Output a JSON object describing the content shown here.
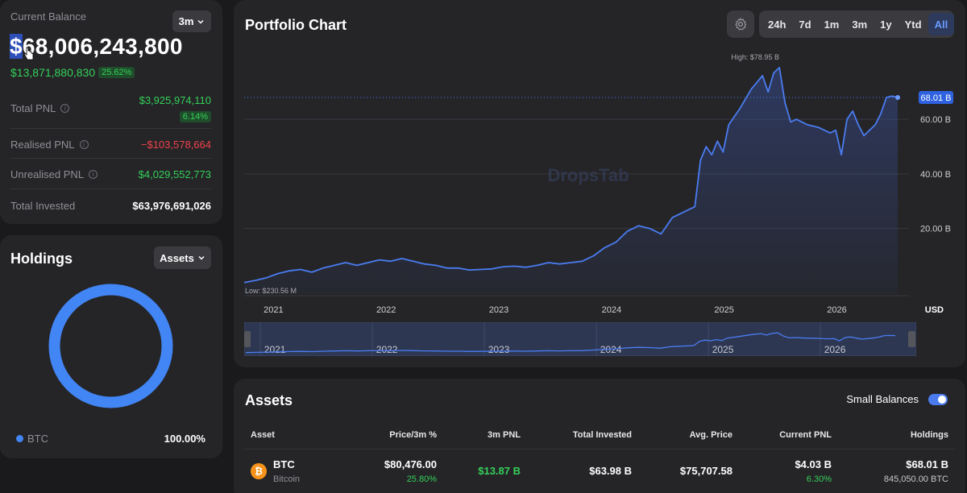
{
  "balance": {
    "label": "Current Balance",
    "period": "3m",
    "value_prefix": "$",
    "value_rest": "68,006,243,800",
    "change_value": "$13,871,880,830",
    "change_pct": "25.62%",
    "stats": [
      {
        "label": "Total PNL",
        "value": "$3,925,974,110",
        "badge": "6.14%",
        "tone": "green",
        "info": true
      },
      {
        "label": "Realised PNL",
        "value": "−$103,578,664",
        "tone": "red",
        "info": true
      },
      {
        "label": "Unrealised PNL",
        "value": "$4,029,552,773",
        "tone": "green",
        "info": true
      },
      {
        "label": "Total Invested",
        "value": "$63,976,691,026",
        "tone": "white",
        "info": false
      }
    ]
  },
  "holdings": {
    "title": "Holdings",
    "view_button": "Assets",
    "legend": [
      {
        "label": "BTC",
        "pct": "100.00%",
        "color": "#4285f4",
        "share": 1.0
      }
    ]
  },
  "chart": {
    "title": "Portfolio Chart",
    "ranges": [
      "24h",
      "7d",
      "1m",
      "3m",
      "1y",
      "Ytd",
      "All"
    ],
    "active_range": "All",
    "watermark": "DropsTab",
    "high_label": "High: $78.95 B",
    "low_label": "Low: $230.56 M",
    "current_label": "68.01 B",
    "currency": "USD"
  },
  "chart_data": {
    "type": "area",
    "x_unit": "year",
    "x_ticks": [
      "2021",
      "2022",
      "2023",
      "2024",
      "2025",
      "2026"
    ],
    "xlim": [
      2020.8,
      2026.7
    ],
    "y_ticks": [
      {
        "value": 20,
        "label": "20.00 B"
      },
      {
        "value": 40,
        "label": "40.00 B"
      },
      {
        "value": 60,
        "label": "60.00 B"
      }
    ],
    "ylim": [
      -4,
      86
    ],
    "color": "#4a7cf0",
    "series": [
      {
        "x": [
          2020.8,
          2020.9,
          2021.0,
          2021.1,
          2021.2,
          2021.3,
          2021.4,
          2021.5,
          2021.6,
          2021.7,
          2021.8,
          2021.9,
          2022.0,
          2022.1,
          2022.2,
          2022.3,
          2022.4,
          2022.5,
          2022.6,
          2022.7,
          2022.8,
          2022.9,
          2023.0,
          2023.1,
          2023.2,
          2023.3,
          2023.4,
          2023.5,
          2023.6,
          2023.7,
          2023.8,
          2023.9,
          2024.0,
          2024.1,
          2024.2,
          2024.3,
          2024.4,
          2024.5,
          2024.6,
          2024.7,
          2024.8,
          2024.85,
          2024.9,
          2024.95,
          2025.0,
          2025.05,
          2025.1,
          2025.2,
          2025.3,
          2025.4,
          2025.45,
          2025.5,
          2025.55,
          2025.6,
          2025.65,
          2025.7,
          2025.8,
          2025.9,
          2026.0,
          2026.05,
          2026.1,
          2026.15,
          2026.2,
          2026.25,
          2026.3,
          2026.4,
          2026.45,
          2026.5,
          2026.55,
          2026.6
        ],
        "y": [
          0.23,
          1.0,
          2.0,
          3.5,
          4.5,
          5.0,
          4.0,
          5.5,
          6.5,
          7.5,
          6.5,
          7.5,
          8.5,
          8.0,
          9.0,
          8.0,
          7.0,
          6.5,
          5.5,
          5.5,
          4.8,
          5.0,
          5.2,
          6.0,
          6.2,
          5.8,
          6.5,
          7.5,
          7.0,
          7.5,
          8.0,
          10.0,
          13.0,
          15.0,
          19.0,
          21.0,
          20.0,
          18.0,
          24.0,
          26.0,
          28.0,
          45.0,
          50.0,
          47.0,
          52.0,
          48.0,
          58.0,
          64.0,
          71.0,
          76.0,
          70.0,
          77.0,
          78.95,
          66.0,
          59.0,
          60.0,
          58.0,
          57.0,
          55.0,
          56.0,
          47.0,
          60.0,
          63.0,
          58.0,
          54.0,
          58.0,
          62.0,
          68.0,
          68.5,
          68.01
        ]
      }
    ]
  },
  "assets": {
    "title": "Assets",
    "small_balances_label": "Small Balances",
    "small_balances_on": true,
    "columns": [
      "Asset",
      "Price/3m %",
      "3m PNL",
      "Total Invested",
      "Avg. Price",
      "Current PNL",
      "Holdings"
    ],
    "rows": [
      {
        "symbol": "BTC",
        "name": "Bitcoin",
        "icon": "bitcoin-icon",
        "price": "$80,476.00",
        "price_change": "25.80%",
        "pnl_3m": "$13.87 B",
        "total_invested": "$63.98 B",
        "avg_price": "$75,707.58",
        "current_pnl": "$4.03 B",
        "current_pnl_pct": "6.30%",
        "holdings_value": "$68.01 B",
        "holdings_amount": "845,050.00 BTC"
      }
    ]
  }
}
